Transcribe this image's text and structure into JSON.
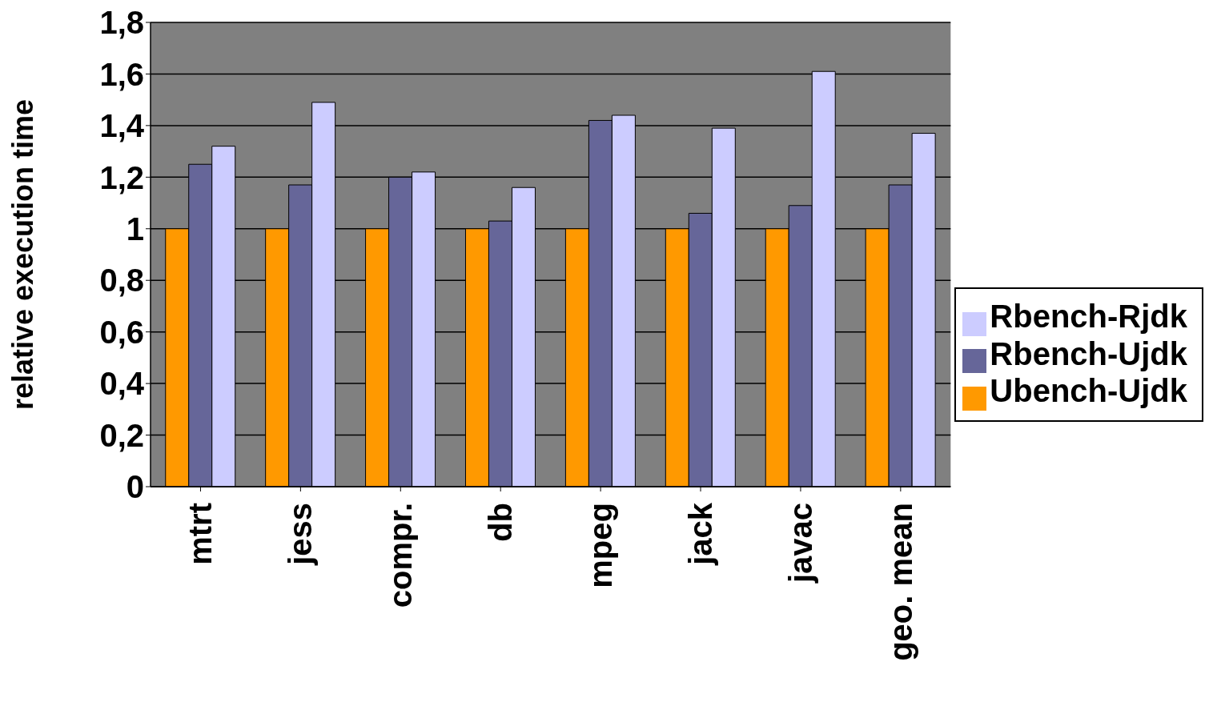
{
  "chart_data": {
    "type": "bar",
    "ylabel": "relative execution time",
    "categories": [
      "mtrt",
      "jess",
      "compr.",
      "db",
      "mpeg",
      "jack",
      "javac",
      "geo. mean"
    ],
    "series": [
      {
        "name": "Ubench-Ujdk",
        "color": "#ff9900",
        "values": [
          1,
          1,
          1,
          1,
          1,
          1,
          1,
          1
        ]
      },
      {
        "name": "Rbench-Ujdk",
        "color": "#666699",
        "values": [
          1.25,
          1.17,
          1.2,
          1.03,
          1.42,
          1.06,
          1.09,
          1.17
        ]
      },
      {
        "name": "Rbench-Rjdk",
        "color": "#ccccff",
        "values": [
          1.32,
          1.49,
          1.22,
          1.16,
          1.44,
          1.39,
          1.61,
          1.37
        ]
      }
    ],
    "ylim": [
      0,
      1.8
    ],
    "yticks": [
      0,
      {
        "value": 0.2,
        "label": "0,2"
      },
      {
        "value": 0.4,
        "label": "0,4"
      },
      {
        "value": 0.6,
        "label": "0,6"
      },
      {
        "value": 0.8,
        "label": "0,8"
      },
      1,
      {
        "value": 1.2,
        "label": "1,2"
      },
      {
        "value": 1.4,
        "label": "1,4"
      },
      {
        "value": 1.6,
        "label": "1,6"
      },
      {
        "value": 1.8,
        "label": "1,8"
      }
    ],
    "grid": "y",
    "legend": "right"
  }
}
